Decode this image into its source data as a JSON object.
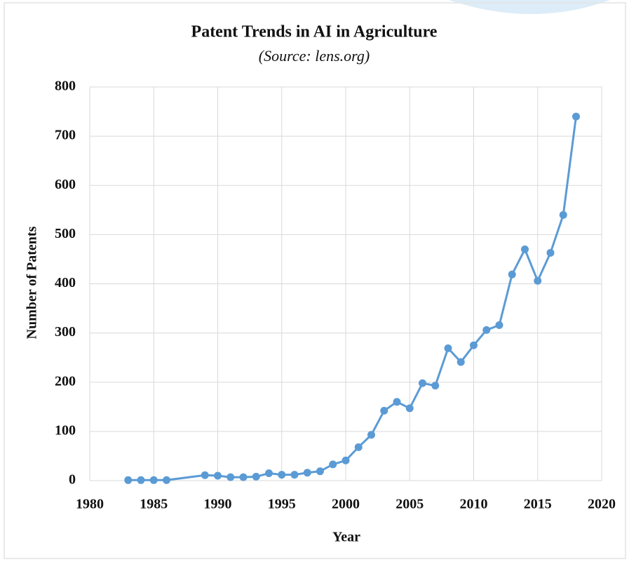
{
  "chart_data": {
    "type": "line",
    "title": "Patent Trends in AI in Agriculture",
    "subtitle": "(Source: lens.org)",
    "x_label": "Year",
    "y_label": "Number  of  Patents",
    "x": [
      1983,
      1984,
      1985,
      1986,
      1989,
      1990,
      1991,
      1992,
      1993,
      1994,
      1995,
      1996,
      1997,
      1998,
      1999,
      2000,
      2001,
      2002,
      2003,
      2004,
      2005,
      2006,
      2007,
      2008,
      2009,
      2010,
      2011,
      2012,
      2013,
      2014,
      2015,
      2016,
      2017,
      2018
    ],
    "values": [
      1,
      1,
      1,
      1,
      11,
      10,
      7,
      7,
      8,
      15,
      12,
      12,
      16,
      19,
      33,
      41,
      68,
      93,
      142,
      160,
      147,
      198,
      193,
      269,
      241,
      275,
      306,
      316,
      419,
      470,
      406,
      463,
      540,
      740
    ],
    "color": "#5b9bd5",
    "xlim": [
      1980,
      2020
    ],
    "xticks": [
      1980,
      1985,
      1990,
      1995,
      2000,
      2005,
      2010,
      2015,
      2020
    ],
    "ylim": [
      0,
      800
    ],
    "yticks": [
      0,
      100,
      200,
      300,
      400,
      500,
      600,
      700,
      800
    ],
    "grid": true
  }
}
